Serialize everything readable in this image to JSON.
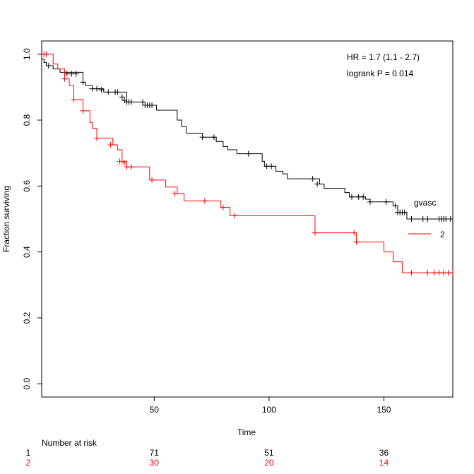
{
  "chart_data": {
    "type": "line",
    "subtype": "kaplan-meier",
    "xlabel": "Time",
    "ylabel": "Fraction surviving",
    "xlim": [
      1,
      180
    ],
    "ylim": [
      -0.04,
      1.04
    ],
    "xticks": [
      50,
      100,
      150
    ],
    "yticks": [
      0.0,
      0.2,
      0.4,
      0.6,
      0.8,
      1.0
    ],
    "grid": false,
    "annotations": [
      "HR = 1.7 (1.1 - 2.7)",
      "logrank P = 0.014"
    ],
    "legend": {
      "title": "gvasc",
      "position": "right",
      "labels": [
        "2"
      ]
    },
    "series": [
      {
        "name": "1",
        "color": "#000000",
        "steps": [
          [
            0,
            1.0
          ],
          [
            1,
            0.985
          ],
          [
            2,
            0.975
          ],
          [
            3,
            0.965
          ],
          [
            6,
            0.955
          ],
          [
            9,
            0.945
          ],
          [
            19,
            0.915
          ],
          [
            20,
            0.905
          ],
          [
            23,
            0.895
          ],
          [
            28,
            0.885
          ],
          [
            38,
            0.855
          ],
          [
            45,
            0.845
          ],
          [
            51,
            0.83
          ],
          [
            60,
            0.8
          ],
          [
            62,
            0.78
          ],
          [
            64,
            0.76
          ],
          [
            71,
            0.748
          ],
          [
            77,
            0.735
          ],
          [
            80,
            0.72
          ],
          [
            82,
            0.71
          ],
          [
            86,
            0.698
          ],
          [
            97,
            0.675
          ],
          [
            98,
            0.66
          ],
          [
            103,
            0.645
          ],
          [
            106,
            0.637
          ],
          [
            108,
            0.622
          ],
          [
            122,
            0.606
          ],
          [
            124,
            0.593
          ],
          [
            133,
            0.58
          ],
          [
            135,
            0.567
          ],
          [
            142,
            0.56
          ],
          [
            144,
            0.552
          ],
          [
            154,
            0.54
          ],
          [
            156,
            0.52
          ],
          [
            160,
            0.5
          ]
        ],
        "censored": [
          [
            4,
            0.965
          ],
          [
            12,
            0.94
          ],
          [
            14,
            0.94
          ],
          [
            16,
            0.94
          ],
          [
            19,
            0.915
          ],
          [
            23,
            0.895
          ],
          [
            25,
            0.895
          ],
          [
            27,
            0.892
          ],
          [
            30,
            0.885
          ],
          [
            33,
            0.885
          ],
          [
            34,
            0.885
          ],
          [
            36,
            0.87
          ],
          [
            37,
            0.86
          ],
          [
            38,
            0.855
          ],
          [
            39,
            0.855
          ],
          [
            40,
            0.855
          ],
          [
            45,
            0.855
          ],
          [
            46,
            0.845
          ],
          [
            47,
            0.845
          ],
          [
            48,
            0.845
          ],
          [
            49,
            0.845
          ],
          [
            71,
            0.748
          ],
          [
            76,
            0.748
          ],
          [
            91,
            0.698
          ],
          [
            99,
            0.66
          ],
          [
            101,
            0.66
          ],
          [
            119,
            0.622
          ],
          [
            121,
            0.606
          ],
          [
            136,
            0.567
          ],
          [
            139,
            0.567
          ],
          [
            141,
            0.567
          ],
          [
            144,
            0.552
          ],
          [
            151,
            0.552
          ],
          [
            155,
            0.54
          ],
          [
            156,
            0.52
          ],
          [
            157,
            0.52
          ],
          [
            158,
            0.52
          ],
          [
            159,
            0.52
          ],
          [
            162,
            0.5
          ],
          [
            167,
            0.5
          ],
          [
            169,
            0.5
          ],
          [
            174,
            0.5
          ],
          [
            175,
            0.5
          ],
          [
            176,
            0.5
          ],
          [
            177,
            0.5
          ],
          [
            179,
            0.5
          ]
        ]
      },
      {
        "name": "2",
        "color": "#ff0000",
        "steps": [
          [
            0,
            1.0
          ],
          [
            6,
            0.97
          ],
          [
            8,
            0.955
          ],
          [
            11,
            0.925
          ],
          [
            13,
            0.905
          ],
          [
            15,
            0.862
          ],
          [
            19,
            0.828
          ],
          [
            22,
            0.793
          ],
          [
            23,
            0.775
          ],
          [
            25,
            0.745
          ],
          [
            32,
            0.725
          ],
          [
            34,
            0.71
          ],
          [
            36,
            0.675
          ],
          [
            38,
            0.658
          ],
          [
            48,
            0.618
          ],
          [
            55,
            0.597
          ],
          [
            60,
            0.577
          ],
          [
            63,
            0.555
          ],
          [
            79,
            0.535
          ],
          [
            83,
            0.51
          ],
          [
            120,
            0.458
          ],
          [
            138,
            0.43
          ],
          [
            150,
            0.4
          ],
          [
            154,
            0.37
          ],
          [
            158,
            0.337
          ]
        ],
        "censored": [
          [
            2,
            1.0
          ],
          [
            3,
            1.0
          ],
          [
            11,
            0.925
          ],
          [
            15,
            0.862
          ],
          [
            19,
            0.828
          ],
          [
            25,
            0.745
          ],
          [
            31,
            0.725
          ],
          [
            35,
            0.675
          ],
          [
            37,
            0.67
          ],
          [
            38,
            0.658
          ],
          [
            40,
            0.658
          ],
          [
            49,
            0.618
          ],
          [
            59,
            0.577
          ],
          [
            72,
            0.555
          ],
          [
            80,
            0.535
          ],
          [
            85,
            0.51
          ],
          [
            120,
            0.458
          ],
          [
            137,
            0.458
          ],
          [
            138,
            0.43
          ],
          [
            162,
            0.337
          ],
          [
            169,
            0.337
          ],
          [
            172,
            0.337
          ],
          [
            174,
            0.337
          ],
          [
            176,
            0.337
          ],
          [
            178,
            0.337
          ],
          [
            180,
            0.337
          ]
        ]
      }
    ],
    "risk_table": {
      "title": "Number at risk",
      "rows": [
        {
          "label": "1",
          "color": "#000000",
          "values": [
            "71",
            "51",
            "36"
          ]
        },
        {
          "label": "2",
          "color": "#ff0000",
          "values": [
            "30",
            "20",
            "14"
          ]
        }
      ]
    }
  }
}
